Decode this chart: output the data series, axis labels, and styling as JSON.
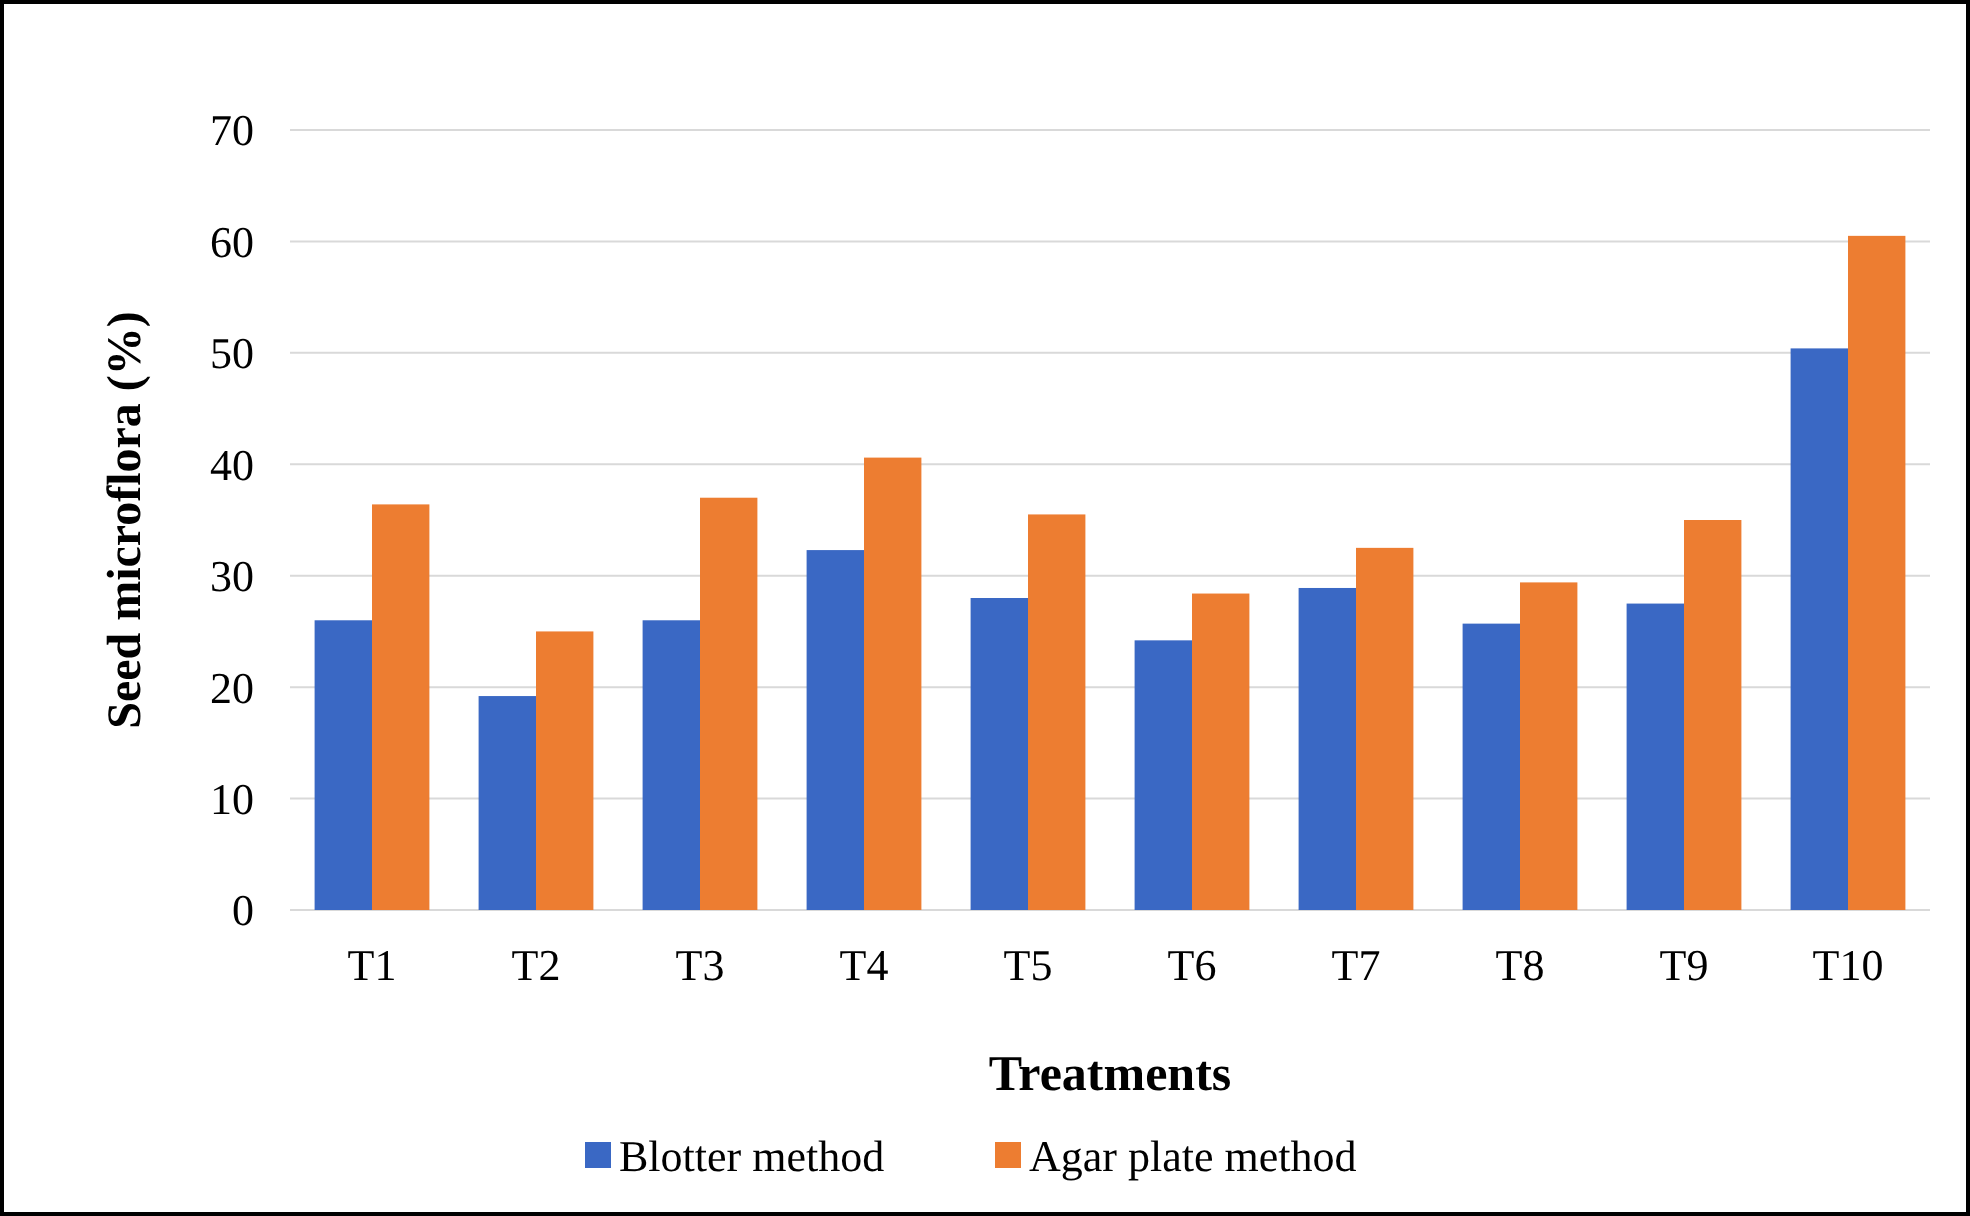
{
  "chart_data": {
    "type": "bar",
    "xlabel": "Treatments",
    "ylabel": "Seed microflora (%)",
    "categories": [
      "T1",
      "T2",
      "T3",
      "T4",
      "T5",
      "T6",
      "T7",
      "T8",
      "T9",
      "T10"
    ],
    "series": [
      {
        "name": "Blotter method",
        "color": "#3a68c4",
        "values": [
          26,
          19.2,
          26,
          32.3,
          28,
          24.2,
          28.9,
          25.7,
          27.5,
          50.4
        ]
      },
      {
        "name": "Agar plate method",
        "color": "#ed7d31",
        "values": [
          36.4,
          25,
          37,
          40.6,
          35.5,
          28.4,
          32.5,
          29.4,
          35,
          60.5
        ]
      }
    ],
    "ylim": [
      0,
      70
    ],
    "yticks": [
      0,
      10,
      20,
      30,
      40,
      50,
      60,
      70
    ],
    "grid": "y",
    "legend": "bottom"
  }
}
